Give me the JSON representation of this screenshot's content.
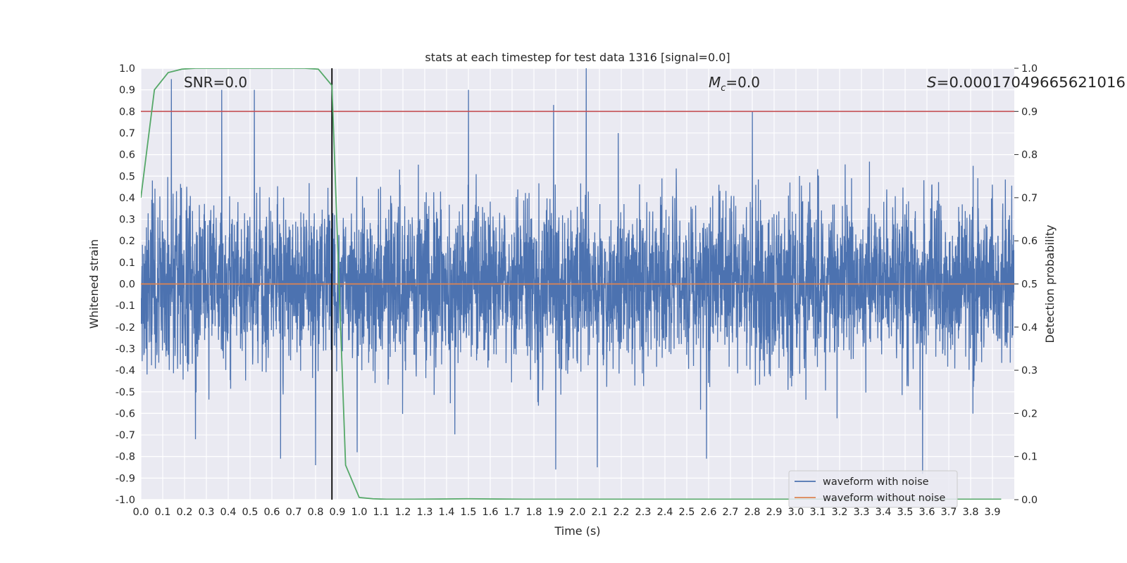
{
  "chart_data": {
    "type": "line",
    "title": "stats at each timestep for test data 1316 [signal=0.0]",
    "xlabel": "Time (s)",
    "ylabel": "Whitened strain",
    "y2label": "Detection probability",
    "xlim": [
      0.0,
      4.0
    ],
    "ylim": [
      -1.0,
      1.0
    ],
    "y2lim": [
      0.0,
      1.0
    ],
    "grid": true,
    "x_ticks": [
      0.0,
      0.1,
      0.2,
      0.3,
      0.4,
      0.5,
      0.6,
      0.7,
      0.8,
      0.9,
      1.0,
      1.1,
      1.2,
      1.3,
      1.4,
      1.5,
      1.6,
      1.7,
      1.8,
      1.9,
      2.0,
      2.1,
      2.2,
      2.3,
      2.4,
      2.5,
      2.6,
      2.7,
      2.8,
      2.9,
      3.0,
      3.1,
      3.2,
      3.3,
      3.4,
      3.5,
      3.6,
      3.7,
      3.8,
      3.9
    ],
    "y_ticks": [
      -1.0,
      -0.9,
      -0.8,
      -0.7,
      -0.6,
      -0.5,
      -0.4,
      -0.3,
      -0.2,
      -0.1,
      0.0,
      0.1,
      0.2,
      0.3,
      0.4,
      0.5,
      0.6,
      0.7,
      0.8,
      0.9,
      1.0
    ],
    "y2_ticks": [
      0.0,
      0.1,
      0.2,
      0.3,
      0.4,
      0.5,
      0.6,
      0.7,
      0.8,
      0.9,
      1.0
    ],
    "annotations": {
      "snr": "SNR=0.0",
      "mc_symbol": "M",
      "mc_sub": "c",
      "mc_value": "=0.0",
      "s_symbol": "S",
      "s_value": "=0.00017049665621016"
    },
    "legend": {
      "placement": "lower-right",
      "entries": [
        "waveform with noise",
        "waveform without noise"
      ]
    },
    "series": [
      {
        "name": "waveform with noise",
        "axis": "left",
        "color": "#4c72b0",
        "style": "noise",
        "sample_count": 4096,
        "peaks": [
          {
            "x": 0.14,
            "y": 0.95
          },
          {
            "x": 0.37,
            "y": 0.9
          },
          {
            "x": 0.52,
            "y": 0.9
          },
          {
            "x": 1.5,
            "y": 0.9
          },
          {
            "x": 1.89,
            "y": 0.83
          },
          {
            "x": 2.04,
            "y": 1.0
          },
          {
            "x": 2.8,
            "y": 0.8
          },
          {
            "x": 0.25,
            "y": -0.72
          },
          {
            "x": 0.64,
            "y": -0.81
          },
          {
            "x": 0.8,
            "y": -0.84
          },
          {
            "x": 1.9,
            "y": -0.86
          },
          {
            "x": 2.09,
            "y": -0.85
          },
          {
            "x": 2.59,
            "y": -0.81
          },
          {
            "x": 3.58,
            "y": -0.88
          }
        ]
      },
      {
        "name": "waveform without noise",
        "axis": "left",
        "color": "#dd8452",
        "x": [
          0.0,
          4.0
        ],
        "y": [
          0.0,
          0.0
        ]
      },
      {
        "axis": "right",
        "color": "#55a868",
        "x": [
          0.0,
          0.062,
          0.125,
          0.1875,
          0.25,
          0.3125,
          0.375,
          0.4375,
          0.5,
          0.5625,
          0.625,
          0.6875,
          0.75,
          0.8125,
          0.875,
          0.9375,
          1.0,
          1.0625,
          1.125,
          1.25,
          1.5,
          1.75,
          2.0,
          2.5,
          3.0,
          3.5,
          3.94
        ],
        "y": [
          0.7,
          0.95,
          0.99,
          0.998,
          1.0,
          1.0,
          1.0,
          1.0,
          1.0,
          1.0,
          1.0,
          1.0,
          1.0,
          0.998,
          0.96,
          0.08,
          0.005,
          0.002,
          0.001,
          0.001,
          0.002,
          0.001,
          0.001,
          0.001,
          0.001,
          0.001,
          0.001
        ]
      }
    ],
    "reference_lines": [
      {
        "orientation": "horizontal",
        "axis": "right",
        "value": 0.9,
        "color": "#c44e52"
      },
      {
        "orientation": "vertical",
        "value": 0.875,
        "color": "#000000"
      }
    ]
  }
}
